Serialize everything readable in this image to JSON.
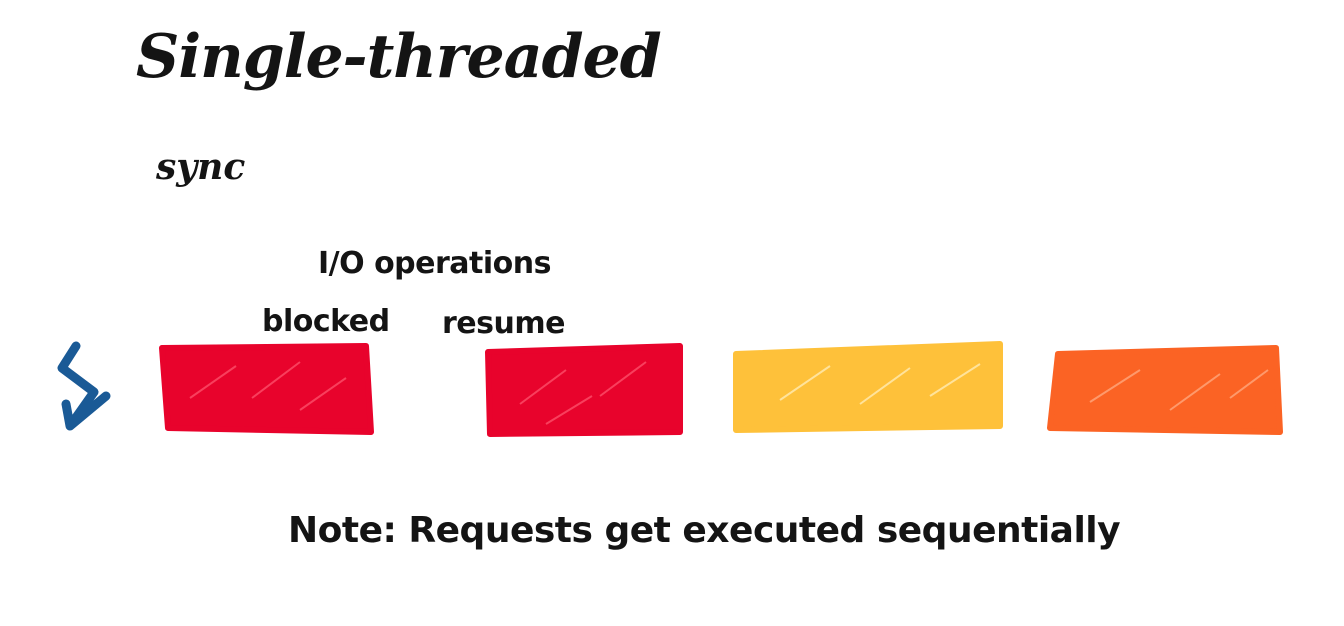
{
  "title": "Single-threaded",
  "subtitle": "sync",
  "annotations": {
    "io_operations": "I/O operations",
    "blocked": "blocked",
    "resume": "resume"
  },
  "note": "Note: Requests get executed sequentially",
  "icon": "lightning-bolt-icon",
  "colors": {
    "bolt": "#1a5a96",
    "request_1": "#e8032c",
    "request_2": "#e8032c",
    "request_3": "#fec13a",
    "request_4": "#fb6324"
  }
}
